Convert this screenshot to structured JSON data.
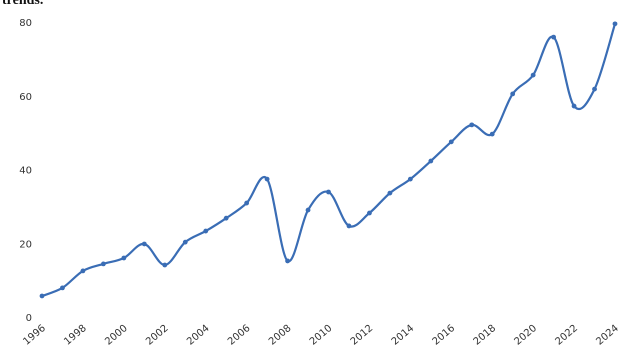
{
  "chart_data": {
    "type": "line",
    "title": "trends.",
    "x": [
      1996,
      1997,
      1998,
      1999,
      2000,
      2001,
      2002,
      2003,
      2004,
      2005,
      2006,
      2007,
      2008,
      2009,
      2010,
      2011,
      2012,
      2013,
      2014,
      2015,
      2016,
      2017,
      2018,
      2019,
      2020,
      2021,
      2022,
      2023,
      2024
    ],
    "series": [
      {
        "color": "#3a6db5",
        "values": [
          5.7,
          7.9,
          12.5,
          14.4,
          16,
          19.8,
          14.1,
          20.3,
          23.3,
          26.8,
          30.9,
          37.4,
          15.2,
          29,
          33.9,
          24.7,
          28.2,
          33.6,
          37.4,
          42.3,
          47.5,
          52.1,
          49.6,
          60.5,
          65.6,
          75.9,
          57.2,
          61.8,
          79.5
        ]
      }
    ],
    "xlim": [
      1996,
      2024
    ],
    "xticks": [
      1996,
      1998,
      2000,
      2002,
      2004,
      2006,
      2008,
      2010,
      2012,
      2014,
      2016,
      2018,
      2020,
      2022,
      2024
    ],
    "ylim": [
      0,
      80
    ],
    "yticks": [
      0,
      20,
      40,
      60,
      80
    ],
    "grid": false,
    "smooth": true
  }
}
